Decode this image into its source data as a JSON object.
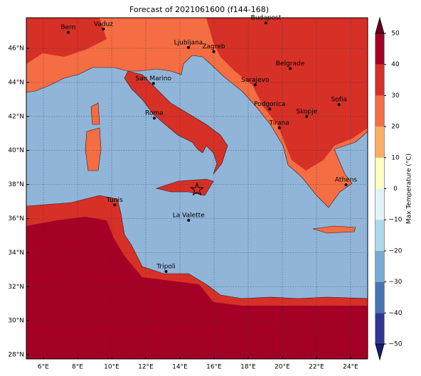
{
  "chart_data": {
    "type": "map",
    "title": "Forecast of 2021061600 (f144-168)",
    "xlim": [
      5,
      25
    ],
    "ylim": [
      27.75,
      47.8
    ],
    "xticks": [
      {
        "value": 6,
        "label": "6°E"
      },
      {
        "value": 8,
        "label": "8°E"
      },
      {
        "value": 10,
        "label": "10°E"
      },
      {
        "value": 12,
        "label": "12°E"
      },
      {
        "value": 14,
        "label": "14°E"
      },
      {
        "value": 16,
        "label": "16°E"
      },
      {
        "value": 18,
        "label": "18°E"
      },
      {
        "value": 20,
        "label": "20°E"
      },
      {
        "value": 22,
        "label": "22°E"
      },
      {
        "value": 24,
        "label": "24°E"
      }
    ],
    "yticks": [
      {
        "value": 28,
        "label": "28°N"
      },
      {
        "value": 30,
        "label": "30°N"
      },
      {
        "value": 32,
        "label": "32°N"
      },
      {
        "value": 34,
        "label": "34°N"
      },
      {
        "value": 36,
        "label": "36°N"
      },
      {
        "value": 38,
        "label": "38°N"
      },
      {
        "value": 40,
        "label": "40°N"
      },
      {
        "value": 42,
        "label": "42°N"
      },
      {
        "value": 44,
        "label": "44°N"
      },
      {
        "value": 46,
        "label": "46°N"
      }
    ],
    "grid": true,
    "cities": [
      {
        "name": "Bern",
        "lon": 7.45,
        "lat": 46.95
      },
      {
        "name": "Vaduz",
        "lon": 9.52,
        "lat": 47.14
      },
      {
        "name": "Budapest",
        "lon": 19.04,
        "lat": 47.5
      },
      {
        "name": "Ljubljana",
        "lon": 14.5,
        "lat": 46.05
      },
      {
        "name": "Zagreb",
        "lon": 15.98,
        "lat": 45.81
      },
      {
        "name": "Belgrade",
        "lon": 20.46,
        "lat": 44.82
      },
      {
        "name": "San Marino",
        "lon": 12.45,
        "lat": 43.94
      },
      {
        "name": "Sarajevo",
        "lon": 18.41,
        "lat": 43.86
      },
      {
        "name": "Sofia",
        "lon": 23.32,
        "lat": 42.7
      },
      {
        "name": "Podgorica",
        "lon": 19.26,
        "lat": 42.44
      },
      {
        "name": "Skopje",
        "lon": 21.43,
        "lat": 42.0
      },
      {
        "name": "Roma",
        "lon": 12.5,
        "lat": 41.9
      },
      {
        "name": "Tirana",
        "lon": 19.82,
        "lat": 41.33
      },
      {
        "name": "Athens",
        "lon": 23.73,
        "lat": 37.98
      },
      {
        "name": "Tunis",
        "lon": 10.18,
        "lat": 36.8
      },
      {
        "name": "La Valette",
        "lon": 14.51,
        "lat": 35.9
      },
      {
        "name": "Tripoli",
        "lon": 13.19,
        "lat": 32.89
      }
    ],
    "star": {
      "lon": 15.0,
      "lat": 37.7
    },
    "colorbar": {
      "label": "Max Temperature (°C)",
      "levels": [
        -50,
        -40,
        -30,
        -20,
        -10,
        0,
        10,
        20,
        30,
        40,
        50
      ],
      "colors": [
        "#313695",
        "#4575b4",
        "#74add1",
        "#abd9e9",
        "#e0f3f8",
        "#ffffbf",
        "#fdae61",
        "#f46d43",
        "#d73027",
        "#a50026"
      ],
      "under_color": "#1b1b6e",
      "over_color": "#67001f",
      "ticks": [
        {
          "value": -50,
          "label": "−50"
        },
        {
          "value": -40,
          "label": "−40"
        },
        {
          "value": -30,
          "label": "−30"
        },
        {
          "value": -20,
          "label": "−20"
        },
        {
          "value": -10,
          "label": "−10"
        },
        0,
        10,
        20,
        30,
        40,
        50
      ]
    }
  }
}
